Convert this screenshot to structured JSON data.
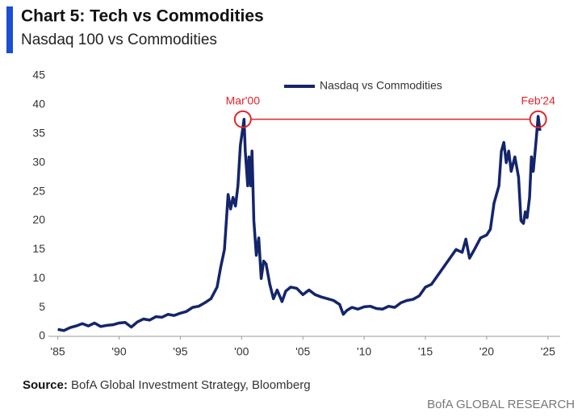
{
  "chart_data": {
    "type": "line",
    "title": "Chart 5: Tech vs Commodities",
    "subtitle": "Nasdaq 100 vs Commodities",
    "legend": "top",
    "grid": false,
    "x": [
      1985.0,
      1985.5,
      1986,
      1986.5,
      1987,
      1987.5,
      1988,
      1988.5,
      1989,
      1989.5,
      1990,
      1990.5,
      1991,
      1991.5,
      1992,
      1992.5,
      1993,
      1993.5,
      1994,
      1994.5,
      1995,
      1995.5,
      1996,
      1996.5,
      1997,
      1997.5,
      1998,
      1998.3,
      1998.6,
      1998.9,
      1999.1,
      1999.3,
      1999.5,
      1999.7,
      1999.9,
      2000.1,
      2000.2,
      2000.3,
      2000.5,
      2000.6,
      2000.75,
      2000.85,
      2001.0,
      2001.2,
      2001.4,
      2001.6,
      2001.8,
      2002.0,
      2002.3,
      2002.6,
      2002.9,
      2003.3,
      2003.6,
      2004,
      2004.5,
      2005,
      2005.5,
      2006,
      2006.5,
      2007,
      2007.5,
      2008,
      2008.3,
      2008.6,
      2009,
      2009.5,
      2010,
      2010.5,
      2011,
      2011.5,
      2012,
      2012.5,
      2013,
      2013.5,
      2014,
      2014.5,
      2015,
      2015.5,
      2016,
      2016.5,
      2017,
      2017.5,
      2018,
      2018.3,
      2018.6,
      2019,
      2019.5,
      2020,
      2020.3,
      2020.6,
      2021,
      2021.2,
      2021.4,
      2021.6,
      2021.8,
      2022,
      2022.3,
      2022.6,
      2022.8,
      2023,
      2023.15,
      2023.3,
      2023.5,
      2023.65,
      2023.8,
      2024.0,
      2024.2,
      2024.35
    ],
    "series": [
      {
        "name": "Nasdaq vs Commodities",
        "color": "#14256b",
        "values": [
          1.2,
          1.0,
          1.5,
          1.8,
          2.2,
          1.8,
          2.3,
          1.7,
          1.9,
          2.0,
          2.3,
          2.4,
          1.6,
          2.5,
          3.0,
          2.8,
          3.4,
          3.3,
          3.8,
          3.6,
          4.0,
          4.3,
          5.0,
          5.2,
          5.8,
          6.5,
          8.5,
          12,
          15,
          24.5,
          22,
          24,
          22.5,
          26,
          33,
          36,
          37.5,
          32,
          26,
          31,
          26,
          32,
          20,
          14,
          17,
          10,
          13,
          12.5,
          9,
          6.5,
          8,
          6,
          7.8,
          8.5,
          8.3,
          7.2,
          8.0,
          7.2,
          6.8,
          6.5,
          6.2,
          5.5,
          3.8,
          4.5,
          5.0,
          4.7,
          5.1,
          5.2,
          4.8,
          4.7,
          5.2,
          5.0,
          5.8,
          6.2,
          6.4,
          7.0,
          8.5,
          9.0,
          10.5,
          12,
          13.5,
          15,
          14.5,
          16.8,
          13.5,
          15,
          17,
          17.5,
          18.5,
          23,
          26,
          32,
          33.5,
          30,
          32,
          28.5,
          31,
          27.5,
          20,
          19.5,
          21.5,
          20.5,
          24,
          31,
          28.5,
          33,
          38,
          35.5
        ]
      }
    ],
    "xlim": [
      1984.5,
      2026
    ],
    "ylim": [
      0,
      45
    ],
    "yticks": [
      0,
      5,
      10,
      15,
      20,
      25,
      30,
      35,
      40,
      45
    ],
    "xticks": [
      {
        "value": 1985,
        "label": "'85"
      },
      {
        "value": 1990,
        "label": "'90"
      },
      {
        "value": 1995,
        "label": "'95"
      },
      {
        "value": 2000,
        "label": "'00"
      },
      {
        "value": 2005,
        "label": "'05"
      },
      {
        "value": 2010,
        "label": "'10"
      },
      {
        "value": 2015,
        "label": "'15"
      },
      {
        "value": 2020,
        "label": "'20"
      },
      {
        "value": 2025,
        "label": "'25"
      }
    ],
    "annotations": [
      {
        "label": "Mar'00",
        "x": 2000.1,
        "y": 37.5,
        "color": "#e0262b"
      },
      {
        "label": "Feb'24",
        "x": 2024.2,
        "y": 37.5,
        "color": "#e0262b"
      }
    ],
    "source": {
      "label": "Source:",
      "text": "BofA Global Investment Strategy, Bloomberg"
    },
    "footer": "BofA GLOBAL RESEARCH"
  }
}
